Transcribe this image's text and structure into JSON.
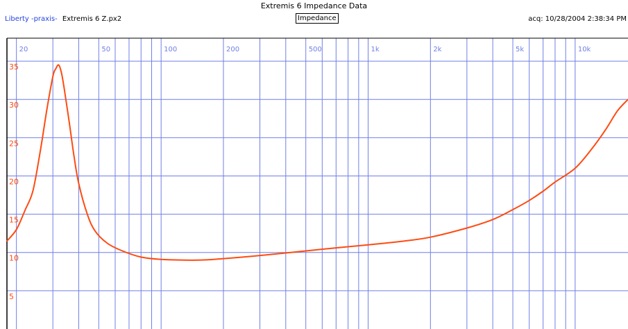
{
  "header": {
    "title": "Extremis 6 Impedance Data",
    "brand": "Liberty -praxis-",
    "file": "Extremis 6 Z.px2",
    "mode": "Impedance",
    "acquired": "acq: 10/28/2004 2:38:34 PM"
  },
  "colors": {
    "grid": "#6f7fe6",
    "trace": "#ff4a10",
    "frame": "#000000",
    "tick_label": "#ff4a10"
  },
  "chart_data": {
    "type": "line",
    "title": "Extremis 6 Impedance Data",
    "xlabel": "",
    "ylabel": "",
    "x_scale": "log",
    "xlim": [
      18,
      18000
    ],
    "ylim": [
      0,
      38
    ],
    "x_ticks": [
      20,
      50,
      100,
      200,
      500,
      1000,
      2000,
      5000,
      10000
    ],
    "x_tick_labels": [
      "20",
      "50",
      "100",
      "200",
      "500",
      "1k",
      "2k",
      "5k",
      "10k"
    ],
    "y_ticks": [
      5,
      10,
      15,
      20,
      25,
      30,
      35
    ],
    "y_tick_labels": [
      "5",
      "10",
      "15",
      "20",
      "25",
      "30",
      "35"
    ],
    "grid": true,
    "series": [
      {
        "x": [
          18,
          20,
          22,
          24,
          26,
          28,
          30,
          31,
          32,
          33,
          34,
          36,
          38,
          40,
          44,
          48,
          55,
          65,
          80,
          100,
          150,
          200,
          300,
          500,
          700,
          1000,
          1500,
          2000,
          3000,
          4000,
          5000,
          6000,
          7000,
          8000,
          10000,
          12000,
          14000,
          16000,
          18000
        ],
        "y": [
          11.5,
          13,
          15.5,
          18,
          23,
          28.5,
          33,
          34,
          34.5,
          33.5,
          31.5,
          27,
          22.5,
          19,
          15,
          12.8,
          11.2,
          10.2,
          9.4,
          9.1,
          9.0,
          9.2,
          9.6,
          10.2,
          10.6,
          11.0,
          11.5,
          12.0,
          13.2,
          14.3,
          15.6,
          16.8,
          18.0,
          19.2,
          21.0,
          23.5,
          26.0,
          28.5,
          30.0
        ]
      }
    ]
  }
}
